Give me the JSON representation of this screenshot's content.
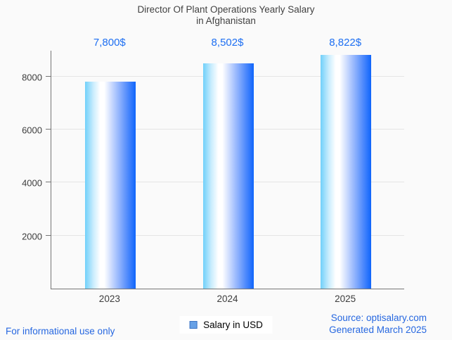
{
  "title": {
    "line1": "Director Of Plant Operations Yearly Salary",
    "line2": "in Afghanistan"
  },
  "chart_data": {
    "type": "bar",
    "title": "Director Of Plant Operations Yearly Salary in Afghanistan",
    "categories": [
      "2023",
      "2024",
      "2025"
    ],
    "values": [
      7800,
      8502,
      8822
    ],
    "value_labels": [
      "7,800$",
      "8,502$",
      "8,822$"
    ],
    "series_name": "Salary in USD",
    "xlabel": "",
    "ylabel": "",
    "ylim": [
      0,
      9000
    ],
    "yticks": [
      2000,
      4000,
      6000,
      8000
    ],
    "grid": true,
    "legend_position": "bottom",
    "bar_gradient": [
      "#70d0fa",
      "#ffffff",
      "#0f65fb"
    ],
    "value_label_color": "#1e6ff2"
  },
  "legend": {
    "label": "Salary in USD",
    "marker_color": "#68a1e6",
    "marker_border_color": "#3d74c4"
  },
  "footer": {
    "disclaimer": "For informational use only",
    "source": "Source: optisalary.com",
    "generated": "Generated March 2025"
  },
  "colors": {
    "background": "#fafafa",
    "title_text": "#424242",
    "axis": "#757575",
    "gridline": "#e5e5e5",
    "tick_text": "#3d3d3d",
    "footer_text": "#2667e0"
  }
}
